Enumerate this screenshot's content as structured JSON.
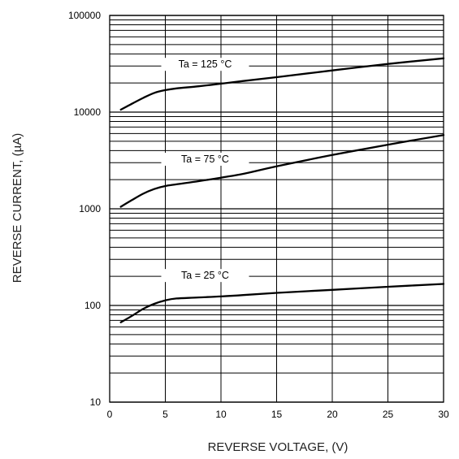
{
  "chart_data": {
    "type": "line",
    "xlabel": "REVERSE VOLTAGE, (V)",
    "ylabel": "REVERSE CURRENT, (µA)",
    "x_scale": "linear",
    "y_scale": "log",
    "xlim": [
      0,
      30
    ],
    "ylim": [
      10,
      100000
    ],
    "x_ticks": [
      "0",
      "5",
      "10",
      "15",
      "20",
      "25",
      "30"
    ],
    "y_ticks": [
      "10",
      "100",
      "1000",
      "10000",
      "100000"
    ],
    "grid": true,
    "series": [
      {
        "name": "Ta = 125 °C",
        "x": [
          1,
          2,
          3,
          4,
          5,
          6,
          8,
          10,
          12,
          15,
          20,
          25,
          30
        ],
        "y": [
          10600,
          12200,
          14000,
          15800,
          16900,
          17600,
          18500,
          19700,
          21000,
          23000,
          27000,
          31500,
          36000
        ]
      },
      {
        "name": "Ta = 75 °C",
        "x": [
          1,
          2,
          3,
          4,
          5,
          6,
          8,
          10,
          12,
          15,
          20,
          25,
          30
        ],
        "y": [
          1050,
          1230,
          1430,
          1600,
          1720,
          1790,
          1930,
          2100,
          2300,
          2750,
          3600,
          4600,
          5800
        ]
      },
      {
        "name": "Ta = 25 °C",
        "x": [
          1,
          2,
          3,
          4,
          5,
          6,
          8,
          10,
          12,
          15,
          20,
          25,
          30
        ],
        "y": [
          67,
          78,
          92,
          104,
          113,
          118,
          121,
          124,
          128,
          135,
          145,
          156,
          167
        ]
      }
    ]
  }
}
